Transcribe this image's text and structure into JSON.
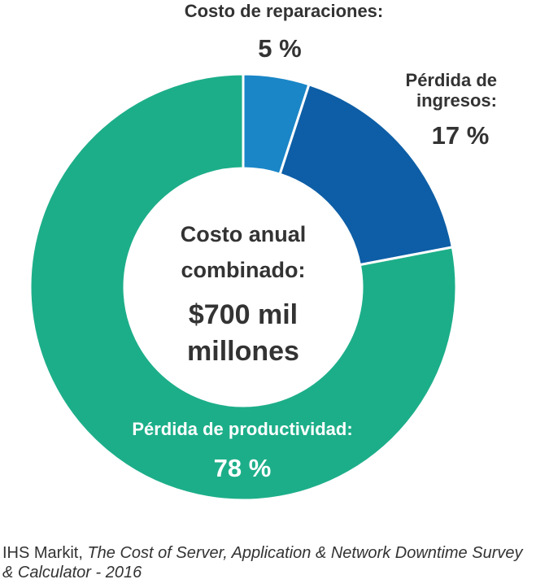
{
  "chart_data": {
    "type": "pie",
    "subtype": "donut",
    "slices": [
      {
        "label_lines": [
          "Costo de reparaciones:"
        ],
        "value_label": "5 %",
        "value": 5,
        "color": "#1a86c7"
      },
      {
        "label_lines": [
          "Pérdida de",
          "ingresos:"
        ],
        "value_label": "17 %",
        "value": 17,
        "color": "#0d5ea6"
      },
      {
        "label_lines": [
          "Pérdida de productividad:"
        ],
        "value_label": "78 %",
        "value": 78,
        "color": "#1cae89"
      }
    ],
    "center_lines": [
      "Costo anual",
      "combinado:"
    ],
    "center_value_lines": [
      "$700 mil",
      "millones"
    ]
  },
  "source": {
    "prefix": "IHS Markit, ",
    "title": "The Cost of Server, Application & Network Downtime Survey & Calculator - 2016"
  }
}
